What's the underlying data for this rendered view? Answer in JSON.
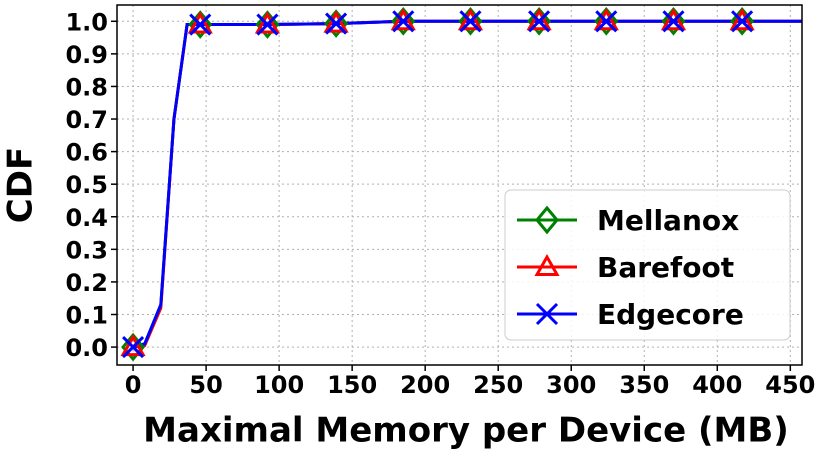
{
  "chart_data": {
    "type": "line",
    "xlabel": "Maximal Memory per Device (MB)",
    "ylabel": "CDF",
    "x": [
      0,
      8,
      19,
      28,
      37,
      46,
      92,
      139,
      185,
      231,
      278,
      324,
      370,
      417,
      458
    ],
    "series": [
      {
        "name": "Mellanox",
        "color": "#008000",
        "marker": "diamond",
        "values": [
          0,
          0.01,
          0.13,
          0.7,
          0.99,
          0.99,
          0.99,
          0.993,
          1.0,
          1.0,
          1.0,
          1.0,
          1.0,
          1.0,
          1.0
        ]
      },
      {
        "name": "Barefoot",
        "color": "#ff0000",
        "marker": "triangle",
        "values": [
          0,
          0.005,
          0.12,
          0.7,
          0.99,
          0.99,
          0.99,
          0.993,
          1.0,
          1.0,
          1.0,
          1.0,
          1.0,
          1.0,
          1.0
        ]
      },
      {
        "name": "Edgecore",
        "color": "#0000ff",
        "marker": "x",
        "values": [
          0,
          0.01,
          0.13,
          0.7,
          0.99,
          0.99,
          0.99,
          0.993,
          1.0,
          1.0,
          1.0,
          1.0,
          1.0,
          1.0,
          1.0
        ]
      }
    ],
    "markevery": [
      0,
      5,
      6,
      7,
      8,
      9,
      10,
      11,
      12,
      13
    ],
    "xlim": [
      -11,
      458
    ],
    "ylim": [
      -0.055,
      1.05
    ],
    "xticks": [
      0,
      50,
      100,
      150,
      200,
      250,
      300,
      350,
      400,
      450
    ],
    "yticks": [
      {
        "value": 0,
        "label": "0.0"
      },
      0.1,
      0.2,
      0.3,
      0.4,
      0.5,
      0.6,
      0.7,
      0.8,
      0.9,
      {
        "value": 1,
        "label": "1.0"
      }
    ],
    "grid": true,
    "legend": "lower right"
  }
}
